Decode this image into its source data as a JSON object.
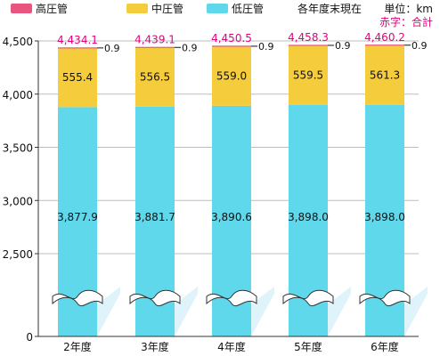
{
  "chart_data": {
    "type": "bar",
    "stacked": true,
    "title": "",
    "xlabel": "",
    "ylabel": "",
    "axis_break": true,
    "ylim": [
      0,
      4500
    ],
    "yticks": [
      0,
      2500,
      3000,
      3500,
      4000,
      4500
    ],
    "ytick_labels": [
      "0",
      "2,500",
      "3,000",
      "3,500",
      "4,000",
      "4,500"
    ],
    "categories": [
      "2年度",
      "3年度",
      "4年度",
      "5年度",
      "6年度"
    ],
    "series": [
      {
        "name": "低圧管",
        "color": "#5fd8ec",
        "values": [
          3877.9,
          3881.7,
          3890.6,
          3898.0,
          3898.0
        ],
        "labels": [
          "3,877.9",
          "3,881.7",
          "3,890.6",
          "3,898.0",
          "3,898.0"
        ]
      },
      {
        "name": "中圧管",
        "color": "#f5cc3c",
        "values": [
          555.4,
          556.5,
          559.0,
          559.5,
          561.3
        ],
        "labels": [
          "555.4",
          "556.5",
          "559.0",
          "559.5",
          "561.3"
        ]
      },
      {
        "name": "高圧管",
        "color": "#e8557e",
        "values": [
          0.9,
          0.9,
          0.9,
          0.9,
          0.9
        ],
        "labels": [
          "0.9",
          "0.9",
          "0.9",
          "0.9",
          "0.9"
        ]
      }
    ],
    "totals": [
      4434.1,
      4439.1,
      4450.5,
      4458.3,
      4460.2
    ],
    "total_labels": [
      "4,434.1",
      "4,439.1",
      "4,450.5",
      "4,458.3",
      "4,460.2"
    ],
    "total_color": "#e6007e",
    "legend_position": "top-left"
  },
  "annotations": {
    "note": "各年度末現在",
    "unit": "単位：km",
    "total_note": "赤字：合計"
  }
}
